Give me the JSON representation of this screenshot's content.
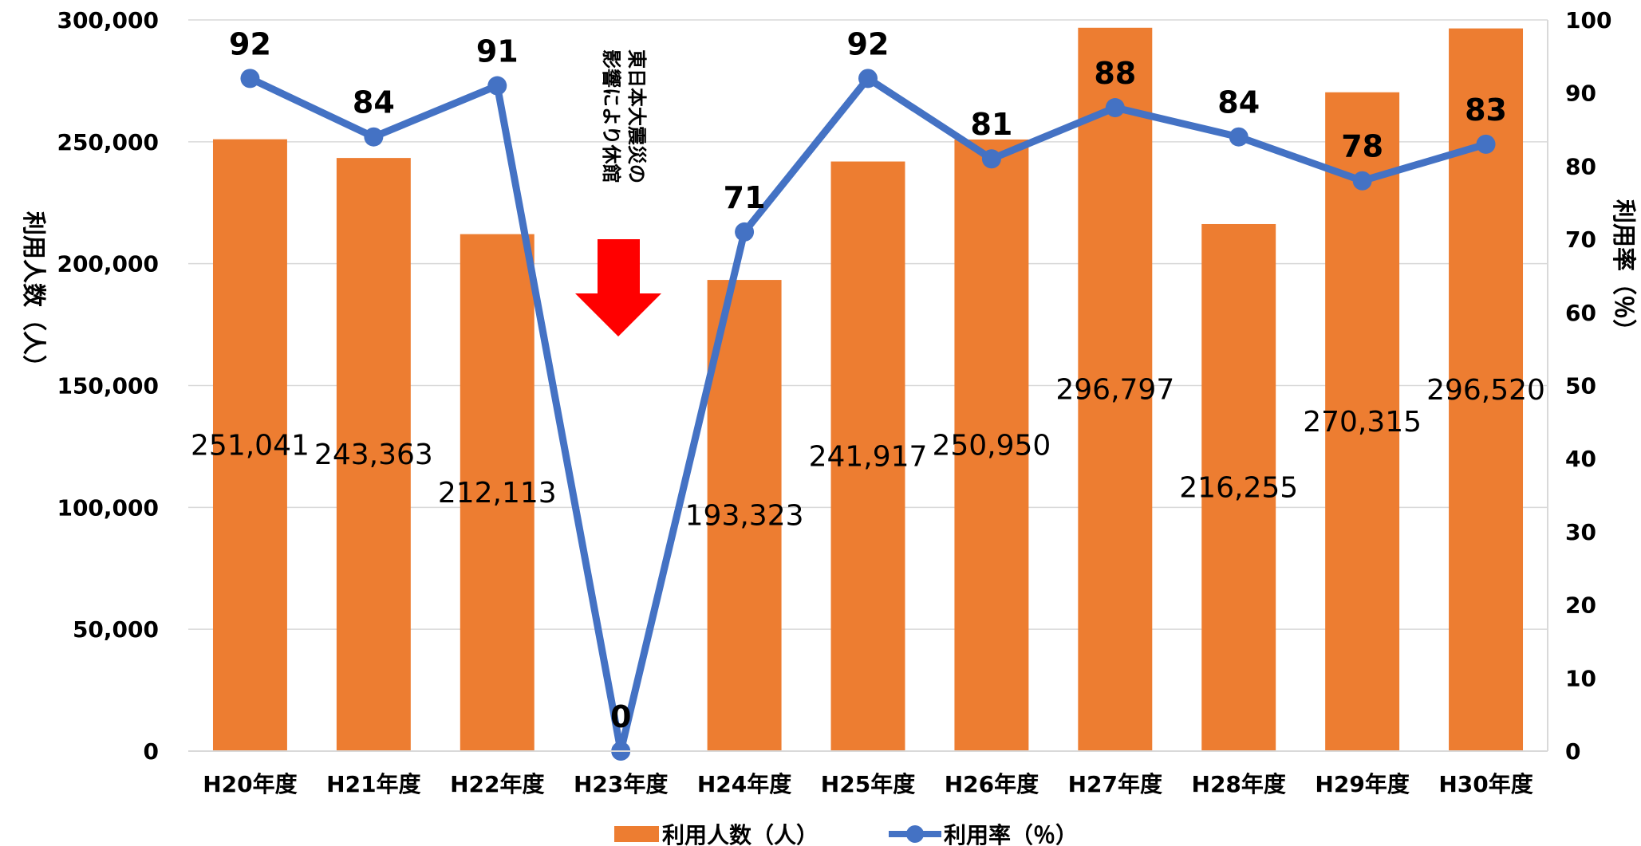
{
  "chart_data": {
    "type": "bar",
    "categories": [
      "H20年度",
      "H21年度",
      "H22年度",
      "H23年度",
      "H24年度",
      "H25年度",
      "H26年度",
      "H27年度",
      "H28年度",
      "H29年度",
      "H30年度"
    ],
    "series": [
      {
        "name": "利用人数（人）",
        "type": "bar",
        "axis": "left",
        "color": "#ED7D31",
        "values": [
          251041,
          243363,
          212113,
          null,
          193323,
          241917,
          250950,
          296797,
          216255,
          270315,
          296520
        ],
        "labels": [
          "251,041",
          "243,363",
          "212,113",
          "",
          "193,323",
          "241,917",
          "250,950",
          "296,797",
          "216,255",
          "270,315",
          "296,520"
        ]
      },
      {
        "name": "利用率（％）",
        "type": "line",
        "axis": "right",
        "color": "#4472C4",
        "values": [
          92,
          84,
          91,
          0,
          71,
          92,
          81,
          88,
          84,
          78,
          83
        ],
        "labels": [
          "92",
          "84",
          "91",
          "0",
          "71",
          "92",
          "81",
          "88",
          "84",
          "78",
          "83"
        ]
      }
    ],
    "ylabel": "利用人数（人）",
    "y2label": "利用率（％）",
    "ylim": [
      0,
      300000
    ],
    "y2lim": [
      0,
      100
    ],
    "yticks": [
      "0",
      "50,000",
      "100,000",
      "150,000",
      "200,000",
      "250,000",
      "300,000"
    ],
    "y2ticks": [
      "0",
      "10",
      "20",
      "30",
      "40",
      "50",
      "60",
      "70",
      "80",
      "90",
      "100"
    ],
    "grid": true,
    "legend": "bottom",
    "annotation": {
      "lines": [
        "東日本大震災の",
        "影響により休館"
      ],
      "category": "H23年度",
      "arrow_color": "#FF0000"
    }
  }
}
